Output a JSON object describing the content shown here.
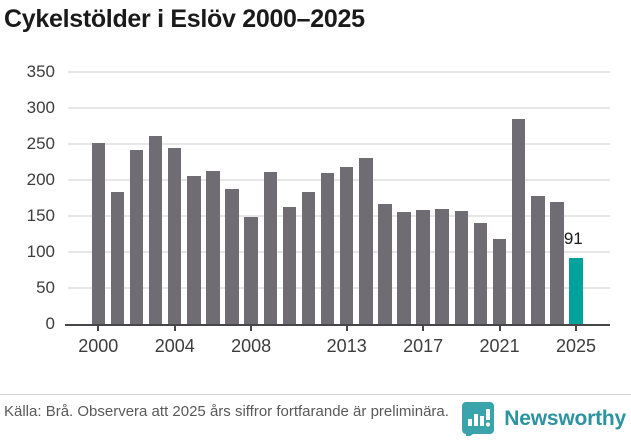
{
  "page": {
    "title": "Cykelstölder i Eslöv 2000–2025"
  },
  "chart_data": {
    "type": "bar",
    "title": "Cykelstölder i Eslöv 2000–2025",
    "categories": [
      "2000",
      "2001",
      "2002",
      "2003",
      "2004",
      "2005",
      "2006",
      "2007",
      "2008",
      "2009",
      "2010",
      "2011",
      "2012",
      "2013",
      "2014",
      "2015",
      "2016",
      "2017",
      "2018",
      "2019",
      "2020",
      "2021",
      "2022",
      "2023",
      "2024",
      "2025"
    ],
    "values": [
      251,
      184,
      241,
      261,
      245,
      205,
      213,
      188,
      149,
      211,
      163,
      184,
      210,
      218,
      230,
      167,
      155,
      158,
      160,
      157,
      140,
      118,
      285,
      178,
      169,
      91
    ],
    "ylim": [
      0,
      350
    ],
    "y_ticks": [
      0,
      50,
      100,
      150,
      200,
      250,
      300,
      350
    ],
    "x_tick_labels": [
      "2000",
      "2004",
      "2008",
      "2013",
      "2017",
      "2021",
      "2025"
    ],
    "grid": true,
    "legend_position": "none",
    "bar_color": "#6f6d73",
    "highlight_color": "#00a39c",
    "highlight_category": "2025",
    "annotation": {
      "text": "91",
      "category": "2025"
    }
  },
  "footer": {
    "source": "Källa: Brå. Observera att 2025 års siffror fortfarande är preliminära.",
    "brand": {
      "name": "Newsworthy",
      "icon": "newsworthy-speech-bubble-chart-icon"
    }
  }
}
